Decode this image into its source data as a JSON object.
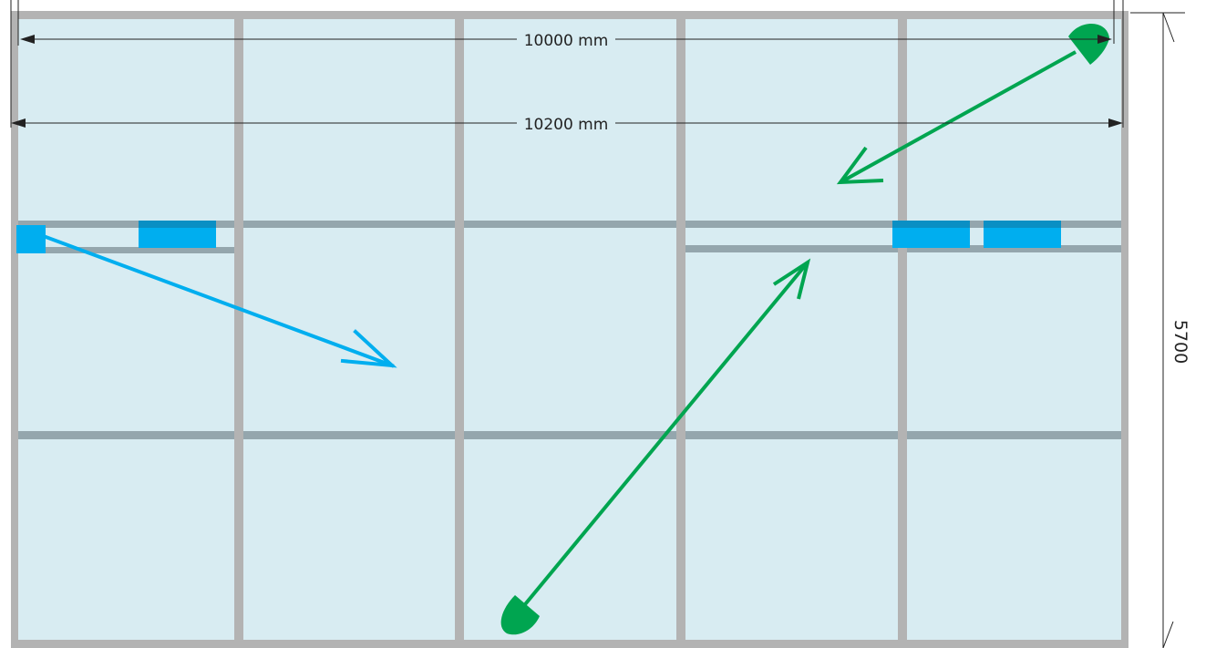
{
  "dimensions": {
    "inner_width": "10000 mm",
    "outer_width": "10200 mm",
    "height": "5700"
  },
  "colors": {
    "glass": "#d8ecf2",
    "frame": "#b3b3b3",
    "track": "#94a6ad",
    "panel": "#00aeef",
    "blue_arrow": "#00aeef",
    "green_arrow": "#00a550",
    "dimension_line": "#222222"
  }
}
